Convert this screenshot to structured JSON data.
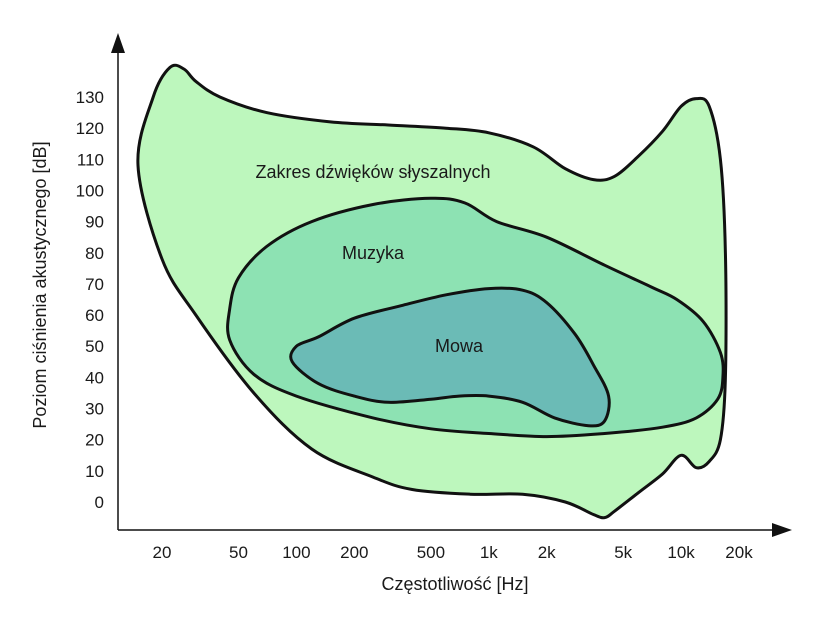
{
  "chart_data": {
    "type": "area",
    "xlabel": "Częstotliwość [Hz]",
    "ylabel": "Poziom ciśnienia akustycznego [dB]",
    "x_scale": "log",
    "xticks": [
      {
        "value": 20,
        "label": "20"
      },
      {
        "value": 50,
        "label": "50"
      },
      {
        "value": 100,
        "label": "100"
      },
      {
        "value": 200,
        "label": "200"
      },
      {
        "value": 500,
        "label": "500"
      },
      {
        "value": 1000,
        "label": "1k"
      },
      {
        "value": 2000,
        "label": "2k"
      },
      {
        "value": 5000,
        "label": "5k"
      },
      {
        "value": 10000,
        "label": "10k"
      },
      {
        "value": 20000,
        "label": "20k"
      }
    ],
    "yticks": [
      0,
      10,
      20,
      30,
      40,
      50,
      60,
      70,
      80,
      90,
      100,
      110,
      120,
      130
    ],
    "xlim": [
      10,
      30000
    ],
    "ylim": [
      -10,
      150
    ],
    "grid": false,
    "regions": [
      {
        "name": "Zakres dźwięków słyszalnych",
        "color": "#bdf7bd",
        "label_at": [
          250,
          106
        ],
        "outline": [
          [
            18,
            130
          ],
          [
            22,
            139.5
          ],
          [
            26,
            139
          ],
          [
            30,
            135
          ],
          [
            40,
            130
          ],
          [
            70,
            125
          ],
          [
            150,
            122
          ],
          [
            300,
            121
          ],
          [
            600,
            120
          ],
          [
            1000,
            118.5
          ],
          [
            1700,
            114
          ],
          [
            2500,
            107
          ],
          [
            3500,
            103.5
          ],
          [
            4500,
            104.5
          ],
          [
            6000,
            111
          ],
          [
            8000,
            119
          ],
          [
            10000,
            127
          ],
          [
            12000,
            129.5
          ],
          [
            14000,
            127
          ],
          [
            16000,
            110
          ],
          [
            17000,
            80
          ],
          [
            17000,
            40
          ],
          [
            16000,
            20
          ],
          [
            14000,
            13
          ],
          [
            12000,
            11
          ],
          [
            10000,
            15
          ],
          [
            8000,
            9
          ],
          [
            6000,
            3
          ],
          [
            4500,
            -3
          ],
          [
            4000,
            -5
          ],
          [
            3500,
            -4
          ],
          [
            2500,
            0
          ],
          [
            1500,
            2.5
          ],
          [
            800,
            2.5
          ],
          [
            400,
            4
          ],
          [
            250,
            8
          ],
          [
            120,
            17
          ],
          [
            60,
            35
          ],
          [
            30,
            60
          ],
          [
            20,
            78
          ],
          [
            15,
            108
          ]
        ]
      },
      {
        "name": "Muzyka",
        "color": "#8de2b3",
        "label_at": [
          250,
          80
        ],
        "outline": [
          [
            45,
            62
          ],
          [
            50,
            72
          ],
          [
            70,
            82
          ],
          [
            120,
            90
          ],
          [
            250,
            95.5
          ],
          [
            500,
            97.5
          ],
          [
            750,
            96
          ],
          [
            1100,
            90
          ],
          [
            2000,
            85
          ],
          [
            4000,
            76
          ],
          [
            7000,
            69
          ],
          [
            9500,
            65
          ],
          [
            13000,
            58
          ],
          [
            16000,
            48
          ],
          [
            16500,
            40
          ],
          [
            15500,
            33
          ],
          [
            12000,
            27
          ],
          [
            8000,
            24
          ],
          [
            4000,
            22
          ],
          [
            2000,
            21
          ],
          [
            1000,
            22
          ],
          [
            500,
            23.5
          ],
          [
            250,
            27
          ],
          [
            100,
            34
          ],
          [
            60,
            41
          ],
          [
            45,
            52
          ]
        ]
      },
      {
        "name": "Mowa",
        "color": "#6bbbb6",
        "label_at": [
          700,
          50
        ],
        "outline": [
          [
            100,
            50
          ],
          [
            130,
            53
          ],
          [
            200,
            59
          ],
          [
            350,
            63
          ],
          [
            600,
            66.5
          ],
          [
            1000,
            68.5
          ],
          [
            1500,
            68
          ],
          [
            2000,
            64
          ],
          [
            2800,
            54
          ],
          [
            3500,
            44
          ],
          [
            4200,
            34
          ],
          [
            4000,
            26
          ],
          [
            3300,
            24.5
          ],
          [
            2200,
            27
          ],
          [
            1500,
            32
          ],
          [
            1000,
            34
          ],
          [
            700,
            34
          ],
          [
            500,
            33
          ],
          [
            300,
            32
          ],
          [
            200,
            34
          ],
          [
            130,
            38
          ],
          [
            95,
            45
          ]
        ]
      }
    ]
  }
}
